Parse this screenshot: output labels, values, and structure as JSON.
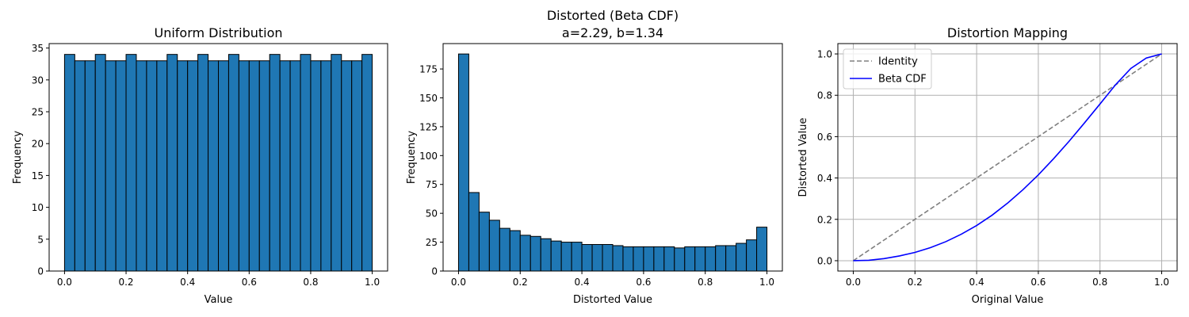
{
  "colors": {
    "bar_fill": "#1f77b4",
    "bar_edge": "#000000",
    "identity_line": "#808080",
    "beta_line": "#0000ff",
    "grid": "#b0b0b0"
  },
  "chart_data": [
    {
      "type": "bar",
      "title": "Uniform Distribution",
      "xlabel": "Value",
      "ylabel": "Frequency",
      "xlim": [
        -0.05,
        1.05
      ],
      "ylim": [
        0,
        35.7
      ],
      "xticks": [
        "0.0",
        "0.2",
        "0.4",
        "0.6",
        "0.8",
        "1.0"
      ],
      "yticks": [
        "0",
        "5",
        "10",
        "15",
        "20",
        "25",
        "30",
        "35"
      ],
      "bin_start": 0.0,
      "bin_end": 1.0,
      "values": [
        34,
        33,
        33,
        34,
        33,
        33,
        34,
        33,
        33,
        33,
        34,
        33,
        33,
        34,
        33,
        33,
        34,
        33,
        33,
        33,
        34,
        33,
        33,
        34,
        33,
        33,
        34,
        33,
        33,
        34
      ],
      "grid": false
    },
    {
      "type": "bar",
      "title": "Distorted (Beta CDF)",
      "subtitle": "a=2.29, b=1.34",
      "xlabel": "Distorted Value",
      "ylabel": "Frequency",
      "xlim": [
        -0.05,
        1.05
      ],
      "ylim": [
        0,
        197
      ],
      "xticks": [
        "0.0",
        "0.2",
        "0.4",
        "0.6",
        "0.8",
        "1.0"
      ],
      "yticks": [
        "0",
        "25",
        "50",
        "75",
        "100",
        "125",
        "150",
        "175"
      ],
      "bin_start": 0.0,
      "bin_end": 1.0,
      "values": [
        188,
        68,
        51,
        44,
        37,
        35,
        31,
        30,
        28,
        26,
        25,
        25,
        23,
        23,
        23,
        22,
        21,
        21,
        21,
        21,
        21,
        20,
        21,
        21,
        21,
        22,
        22,
        24,
        27,
        38
      ],
      "grid": false
    },
    {
      "type": "line",
      "title": "Distortion Mapping",
      "xlabel": "Original Value",
      "ylabel": "Distorted Value",
      "xlim": [
        -0.05,
        1.05
      ],
      "ylim": [
        -0.05,
        1.05
      ],
      "xticks": [
        "0.0",
        "0.2",
        "0.4",
        "0.6",
        "0.8",
        "1.0"
      ],
      "yticks": [
        "0.0",
        "0.2",
        "0.4",
        "0.6",
        "0.8",
        "1.0"
      ],
      "grid": true,
      "legend_position": "top-left",
      "series": [
        {
          "name": "Identity",
          "style": "dashed",
          "x": [
            0.0,
            1.0
          ],
          "y": [
            0.0,
            1.0
          ]
        },
        {
          "name": "Beta CDF",
          "style": "solid",
          "x": [
            0.0,
            0.05,
            0.1,
            0.15,
            0.2,
            0.25,
            0.3,
            0.35,
            0.4,
            0.45,
            0.5,
            0.55,
            0.6,
            0.65,
            0.7,
            0.75,
            0.8,
            0.85,
            0.9,
            0.95,
            1.0
          ],
          "y": [
            0.0,
            0.002,
            0.01,
            0.023,
            0.04,
            0.063,
            0.092,
            0.128,
            0.17,
            0.22,
            0.278,
            0.343,
            0.415,
            0.494,
            0.578,
            0.667,
            0.758,
            0.85,
            0.93,
            0.98,
            1.0
          ]
        }
      ]
    }
  ]
}
